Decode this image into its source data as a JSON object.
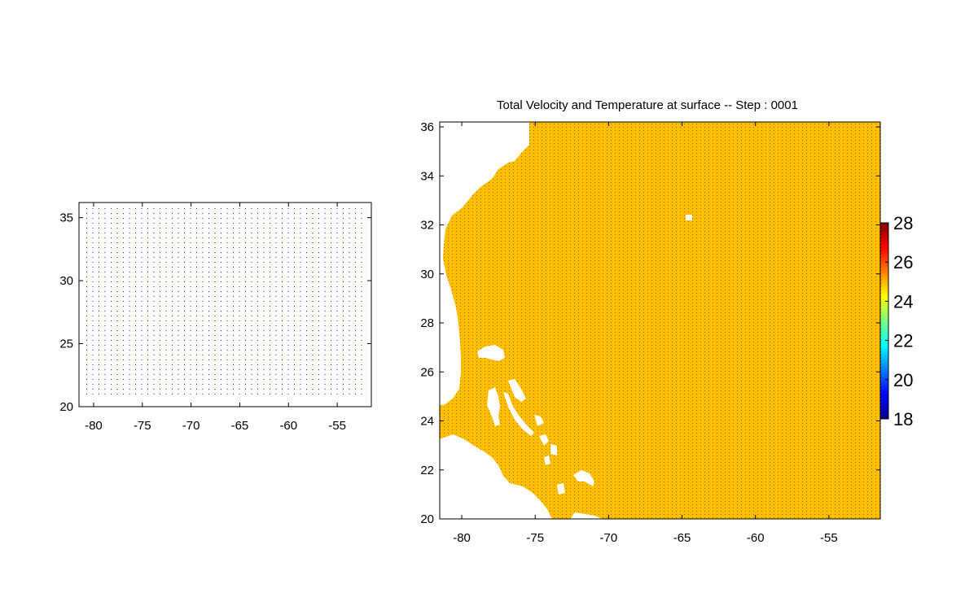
{
  "chart_data": [
    {
      "type": "quiver",
      "title": "",
      "xlabel": "",
      "ylabel": "",
      "xlim": [
        -81.5,
        -51.5
      ],
      "ylim": [
        20,
        36.2
      ],
      "xticks": [
        "-80",
        "-75",
        "-70",
        "-65",
        "-60",
        "-55"
      ],
      "yticks": [
        "20",
        "25",
        "30",
        "35"
      ],
      "vector_field": {
        "x_range": [
          -81,
          -52
        ],
        "y_range": [
          20.5,
          36
        ],
        "spacing": 0.5,
        "magnitude": 0,
        "color": "#1a1aff"
      },
      "grid": false
    },
    {
      "type": "heatmap",
      "title": "Total Velocity and Temperature at surface -- Step : 0001",
      "xlabel": "",
      "ylabel": "",
      "xlim": [
        -81.5,
        -51.5
      ],
      "ylim": [
        20,
        36.2
      ],
      "xticks": [
        "-80",
        "-75",
        "-70",
        "-65",
        "-60",
        "-55"
      ],
      "yticks": [
        "20",
        "22",
        "24",
        "26",
        "28",
        "30",
        "32",
        "34",
        "36"
      ],
      "field_value": 25.5,
      "field_color": "#ffbf00",
      "land_color": "#ffffff",
      "vector_color": "#222222",
      "colorbar": {
        "ticks": [
          "18",
          "20",
          "22",
          "24",
          "26",
          "28"
        ],
        "range": [
          18,
          28
        ],
        "colormap": "jet"
      },
      "grid": false
    }
  ]
}
